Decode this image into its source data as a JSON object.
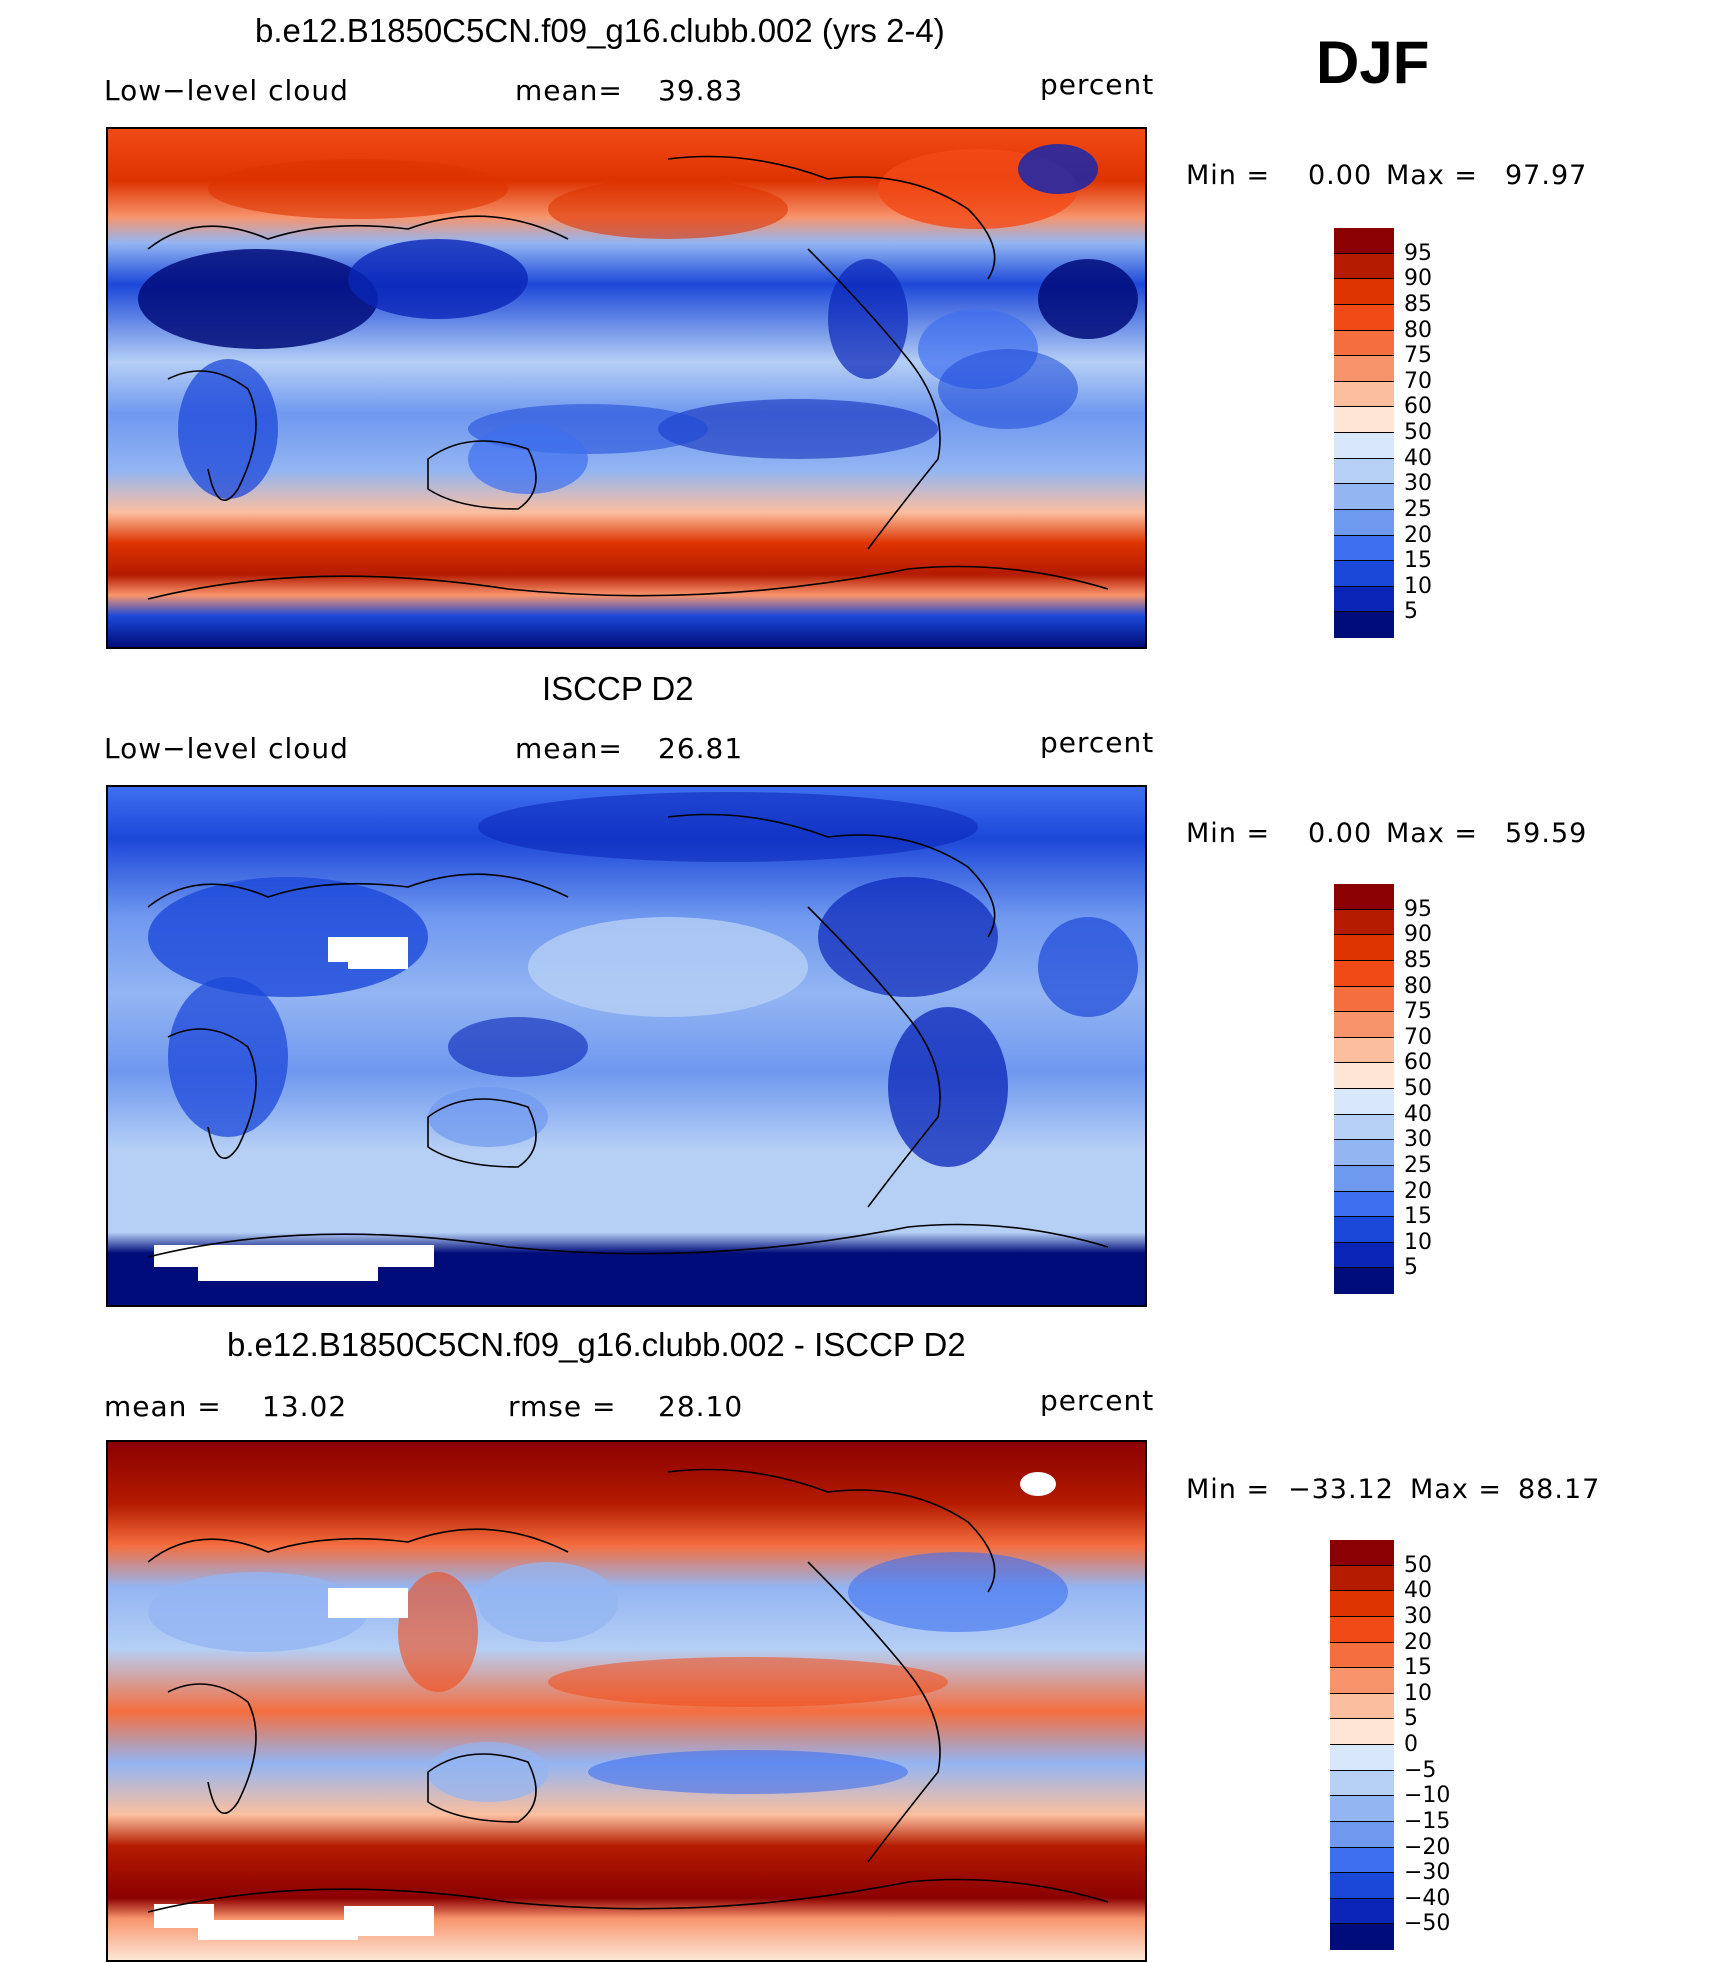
{
  "season": "DJF",
  "panels": [
    {
      "title": "b.e12.B1850C5CN.f09_g16.clubb.002 (yrs 2-4)",
      "left_label": "Low−level cloud",
      "stat_label": "mean=",
      "stat_value": "39.83",
      "stat2_label": "",
      "stat2_value": "",
      "units": "percent",
      "min_label": "Min =",
      "min_value": "0.00",
      "max_label": "Max =",
      "max_value": "97.97",
      "colorbar": {
        "levels": [
          "95",
          "90",
          "85",
          "80",
          "75",
          "70",
          "60",
          "50",
          "40",
          "30",
          "25",
          "20",
          "15",
          "10",
          "5"
        ],
        "colors": [
          "#8b0000",
          "#b51b00",
          "#dd3300",
          "#f24a16",
          "#f46e3f",
          "#f8946c",
          "#fbbf9f",
          "#fde6d6",
          "#d8e8fa",
          "#b5cff5",
          "#93b5f2",
          "#6f98ef",
          "#3e6ff0",
          "#1c48d9",
          "#0a25b8",
          "#000c7a"
        ]
      }
    },
    {
      "title": "ISCCP D2",
      "left_label": "Low−level cloud",
      "stat_label": "mean=",
      "stat_value": "26.81",
      "stat2_label": "",
      "stat2_value": "",
      "units": "percent",
      "min_label": "Min =",
      "min_value": "0.00",
      "max_label": "Max =",
      "max_value": "59.59",
      "colorbar": {
        "levels": [
          "95",
          "90",
          "85",
          "80",
          "75",
          "70",
          "60",
          "50",
          "40",
          "30",
          "25",
          "20",
          "15",
          "10",
          "5"
        ],
        "colors": [
          "#8b0000",
          "#b51b00",
          "#dd3300",
          "#f24a16",
          "#f46e3f",
          "#f8946c",
          "#fbbf9f",
          "#fde6d6",
          "#d8e8fa",
          "#b5cff5",
          "#93b5f2",
          "#6f98ef",
          "#3e6ff0",
          "#1c48d9",
          "#0a25b8",
          "#000c7a"
        ]
      }
    },
    {
      "title": "b.e12.B1850C5CN.f09_g16.clubb.002 - ISCCP D2",
      "left_label": "mean =",
      "left_value": "13.02",
      "stat_label": "rmse =",
      "stat_value": "28.10",
      "units": "percent",
      "min_label": "Min =",
      "min_value": "−33.12",
      "max_label": "Max =",
      "max_value": "88.17",
      "colorbar": {
        "levels": [
          "50",
          "40",
          "30",
          "20",
          "15",
          "10",
          "5",
          "0",
          "−5",
          "−10",
          "−15",
          "−20",
          "−30",
          "−40",
          "−50"
        ],
        "colors": [
          "#8b0000",
          "#b51b00",
          "#dd3300",
          "#f24a16",
          "#f46e3f",
          "#f8946c",
          "#fbbf9f",
          "#fde6d6",
          "#d8e8fa",
          "#b5cff5",
          "#93b5f2",
          "#6f98ef",
          "#3e6ff0",
          "#1c48d9",
          "#0a25b8",
          "#000c7a"
        ]
      }
    }
  ],
  "chart_data": [
    {
      "type": "heatmap",
      "title": "b.e12.B1850C5CN.f09_g16.clubb.002 (yrs 2-4)",
      "variable": "Low−level cloud",
      "units": "percent",
      "mean": 39.83,
      "min": 0.0,
      "max": 97.97,
      "contour_levels": [
        5,
        10,
        15,
        20,
        25,
        30,
        40,
        50,
        60,
        70,
        75,
        80,
        85,
        90,
        95
      ]
    },
    {
      "type": "heatmap",
      "title": "ISCCP D2",
      "variable": "Low−level cloud",
      "units": "percent",
      "mean": 26.81,
      "min": 0.0,
      "max": 59.59,
      "contour_levels": [
        5,
        10,
        15,
        20,
        25,
        30,
        40,
        50,
        60,
        70,
        75,
        80,
        85,
        90,
        95
      ]
    },
    {
      "type": "heatmap",
      "title": "b.e12.B1850C5CN.f09_g16.clubb.002 - ISCCP D2",
      "units": "percent",
      "mean": 13.02,
      "rmse": 28.1,
      "min": -33.12,
      "max": 88.17,
      "contour_levels": [
        -50,
        -40,
        -30,
        -20,
        -15,
        -10,
        -5,
        0,
        5,
        10,
        15,
        20,
        30,
        40,
        50
      ]
    }
  ]
}
